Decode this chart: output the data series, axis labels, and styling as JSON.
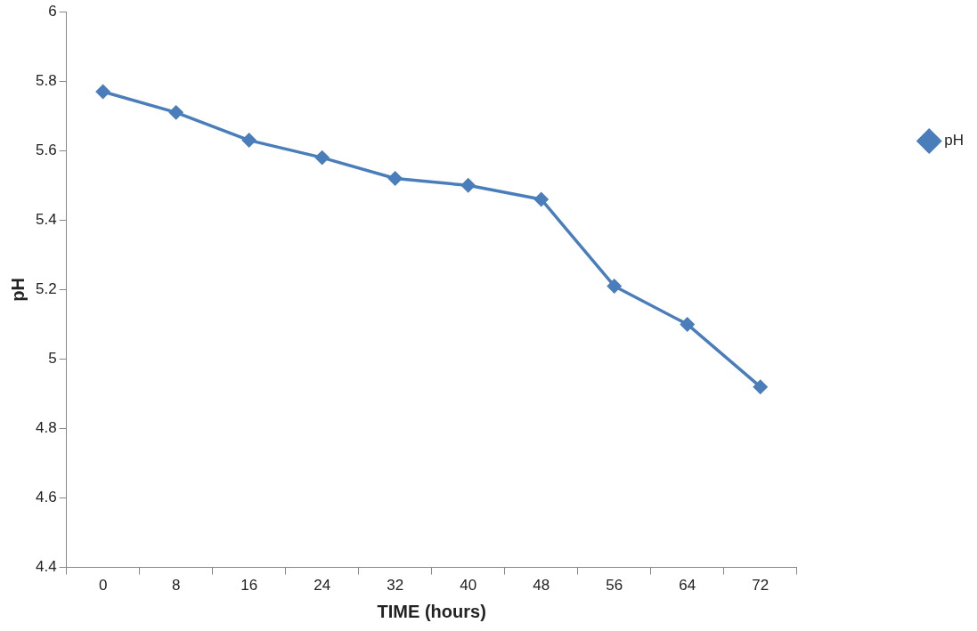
{
  "chart_data": {
    "type": "line",
    "xlabel": "TIME (hours)",
    "ylabel": "pH",
    "categories": [
      "0",
      "8",
      "16",
      "24",
      "32",
      "40",
      "48",
      "56",
      "64",
      "72"
    ],
    "series": [
      {
        "name": "pH",
        "color": "#4a7ebb",
        "values": [
          5.77,
          5.71,
          5.63,
          5.58,
          5.52,
          5.5,
          5.46,
          5.21,
          5.1,
          4.92
        ]
      }
    ],
    "ylim": [
      4.4,
      6
    ],
    "yticks": [
      4.4,
      4.6,
      4.8,
      5,
      5.2,
      5.4,
      5.6,
      5.8,
      6
    ],
    "grid": false,
    "legend": "right",
    "marker": "diamond",
    "line_style": "solid"
  }
}
